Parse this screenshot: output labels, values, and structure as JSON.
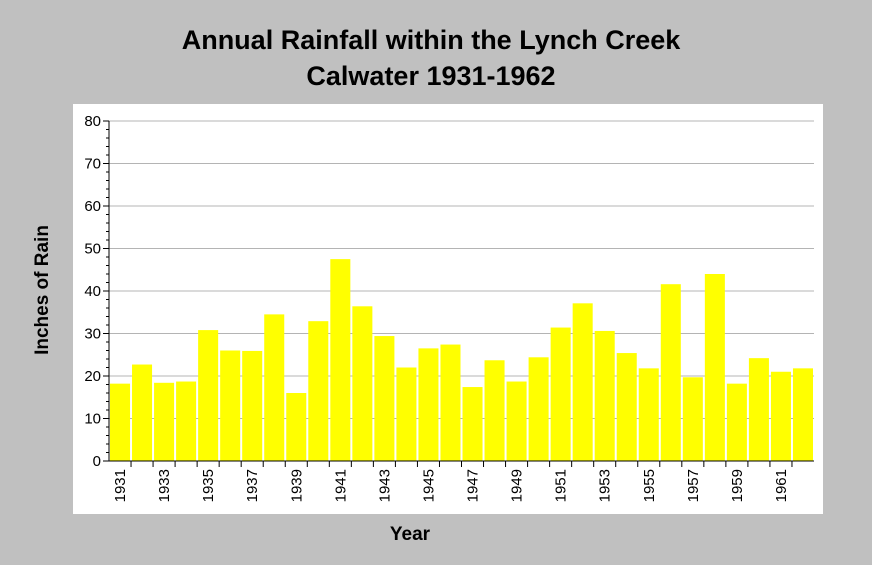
{
  "chart_data": {
    "type": "bar",
    "title_line1": "Annual Rainfall within the Lynch Creek",
    "title_line2": "Calwater 1931-1962",
    "xlabel": "Year",
    "ylabel": "Inches of Rain",
    "ylim": [
      0,
      80
    ],
    "yticks": [
      0,
      10,
      20,
      30,
      40,
      50,
      60,
      70,
      80
    ],
    "grid": true,
    "legend": "none",
    "bar_color": "#ffff00",
    "categories": [
      "1931",
      "1932",
      "1933",
      "1934",
      "1935",
      "1936",
      "1937",
      "1938",
      "1939",
      "1940",
      "1941",
      "1942",
      "1943",
      "1944",
      "1945",
      "1946",
      "1947",
      "1948",
      "1949",
      "1950",
      "1951",
      "1952",
      "1953",
      "1954",
      "1955",
      "1956",
      "1957",
      "1958",
      "1959",
      "1960",
      "1961",
      "1962"
    ],
    "x_tick_labels": [
      "1931",
      "1933",
      "1935",
      "1937",
      "1939",
      "1941",
      "1943",
      "1945",
      "1947",
      "1949",
      "1951",
      "1953",
      "1955",
      "1957",
      "1959",
      "1961"
    ],
    "values": [
      18.2,
      22.7,
      18.4,
      18.7,
      30.8,
      26.0,
      25.9,
      34.5,
      16.0,
      32.9,
      47.5,
      36.4,
      29.4,
      22.0,
      26.5,
      27.4,
      17.4,
      23.7,
      18.7,
      24.4,
      31.4,
      37.1,
      30.6,
      25.4,
      21.8,
      41.6,
      19.7,
      44.0,
      18.2,
      24.2,
      21.0,
      21.8
    ]
  }
}
